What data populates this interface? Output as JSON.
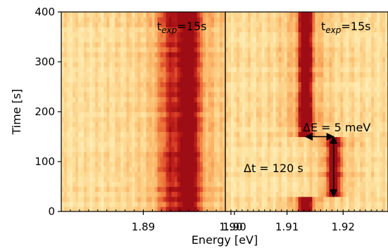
{
  "chart_data": {
    "type": "heatmap",
    "ylabel": "Time [s]",
    "xlabel": "Energy [eV]",
    "ylim": [
      0,
      400
    ],
    "yticks": [
      "0",
      "100",
      "200",
      "300",
      "400"
    ],
    "colormap": [
      "#fff7d6",
      "#fde3a0",
      "#fbb86a",
      "#f07d3e",
      "#cc2a1f",
      "#9e0c14"
    ],
    "panels": [
      {
        "xlim": [
          1.881,
          1.899
        ],
        "xticks": [
          "1.89",
          "1.90"
        ],
        "xtick_values": [
          1.89,
          1.9
        ],
        "annotation": {
          "prefix": "t",
          "subscript": "exp",
          "suffix": "=15s"
        },
        "peaks": [
          {
            "t_start": 0,
            "t_end": 400,
            "energy": 1.8951,
            "width": 0.0009
          },
          {
            "t_start": 0,
            "t_end": 400,
            "energy": 1.8931,
            "width": 0.0014,
            "weight": 0.45
          }
        ]
      },
      {
        "xlim": [
          1.899,
          1.928
        ],
        "xticks": [
          "1.90",
          "1.91",
          "1.92"
        ],
        "xtick_values": [
          1.9,
          1.91,
          1.92
        ],
        "annotation": {
          "prefix": "t",
          "subscript": "exp",
          "suffix": "=15s"
        },
        "peaks": [
          {
            "t_start": 150,
            "t_end": 400,
            "energy": 1.9133,
            "width": 0.0011
          },
          {
            "t_start": 30,
            "t_end": 150,
            "energy": 1.9183,
            "width": 0.0011
          },
          {
            "t_start": 0,
            "t_end": 30,
            "energy": 1.9133,
            "width": 0.0011
          }
        ],
        "markers": {
          "delta_e": {
            "label": "ΔE = 5 meV",
            "value_meV": 5,
            "from_energy": 1.9133,
            "to_energy": 1.9183,
            "time": 150
          },
          "delta_t": {
            "label": "Δt = 120 s",
            "value_s": 120,
            "from_time": 150,
            "to_time": 30,
            "energy": 1.9183
          }
        }
      }
    ]
  }
}
